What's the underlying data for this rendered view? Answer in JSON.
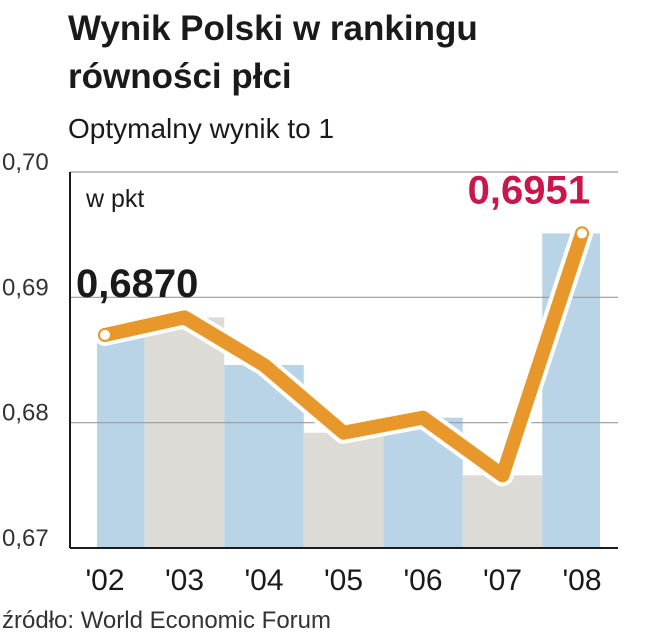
{
  "chart_data": {
    "type": "line",
    "title": [
      "Wynik Polski w rankingu",
      "równości płci"
    ],
    "subtitle": "Optymalny wynik to 1",
    "y_label": "w pkt",
    "source": "źródło: World Economic Forum",
    "categories": [
      "'02",
      "'03",
      "'04",
      "'05",
      "'06",
      "'07",
      "'08"
    ],
    "values": [
      0.687,
      0.6884,
      0.6846,
      0.6792,
      0.6804,
      0.6758,
      0.6951
    ],
    "value_labels": [
      "0,6870",
      null,
      null,
      null,
      null,
      null,
      "0,6951"
    ],
    "value_label_colors": [
      "#1a1a1a",
      null,
      null,
      null,
      null,
      null,
      "#c8174a"
    ],
    "color": "#e8982a",
    "band_colors": [
      "#b9d4e7",
      "#dddbd5"
    ],
    "ylim": [
      0.67,
      0.7
    ],
    "yticks": [
      {
        "value": 0.67,
        "label": "0,67"
      },
      {
        "value": 0.68,
        "label": "0,68"
      },
      {
        "value": 0.69,
        "label": "0,69"
      },
      {
        "value": 0.7,
        "label": "0,70"
      }
    ],
    "grid": true
  }
}
